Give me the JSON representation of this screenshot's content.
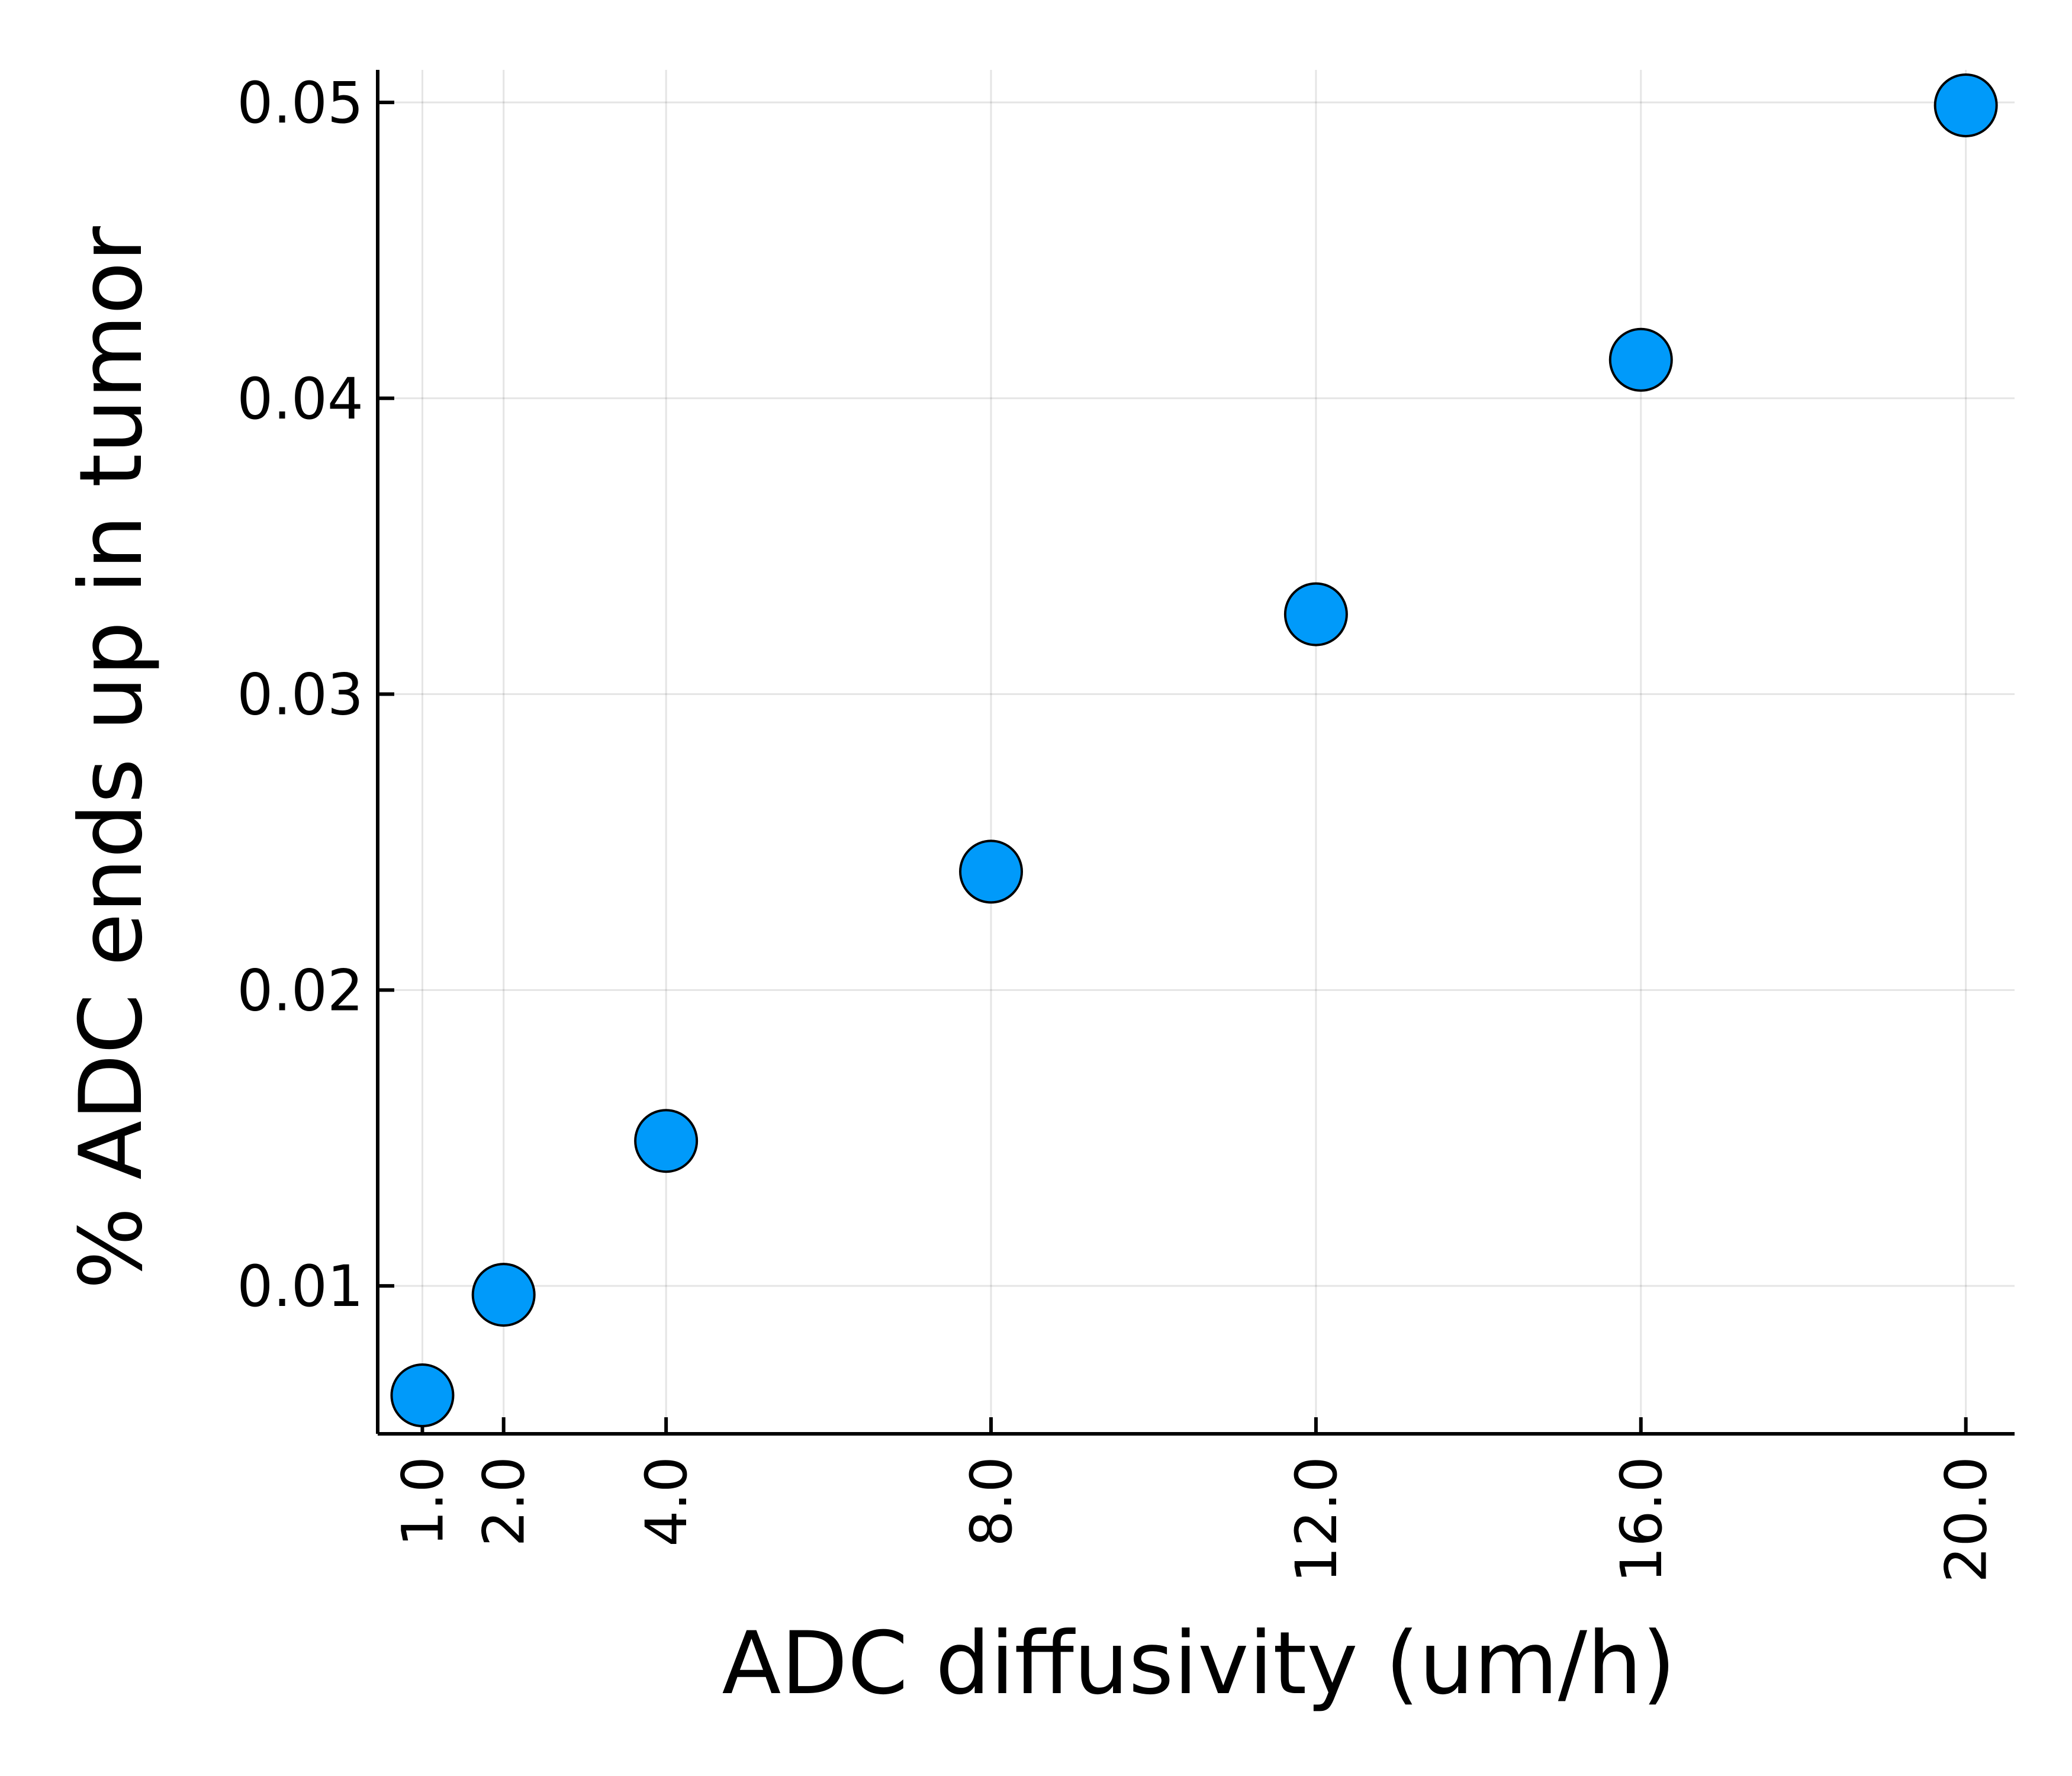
{
  "chart_data": {
    "type": "scatter",
    "title": "",
    "xlabel": "ADC diffusivity (um/h)",
    "ylabel": "% ADC ends up in tumor",
    "x": [
      1.0,
      2.0,
      4.0,
      8.0,
      12.0,
      16.0,
      20.0
    ],
    "y": [
      0.0063,
      0.0097,
      0.0149,
      0.024,
      0.0327,
      0.0413,
      0.0499
    ],
    "xticks": [
      1.0,
      2.0,
      4.0,
      8.0,
      12.0,
      16.0,
      20.0
    ],
    "xtick_labels": [
      "1.0",
      "2.0",
      "4.0",
      "8.0",
      "12.0",
      "16.0",
      "20.0"
    ],
    "yticks": [
      0.01,
      0.02,
      0.03,
      0.04,
      0.05
    ],
    "ytick_labels": [
      "0.01",
      "0.02",
      "0.03",
      "0.04",
      "0.05"
    ],
    "xlim": [
      0.45,
      20.6
    ],
    "ylim": [
      0.005,
      0.0511
    ],
    "grid": true,
    "legend": "none",
    "marker_color": "#009AFA",
    "marker_edge_color": "#000000"
  }
}
